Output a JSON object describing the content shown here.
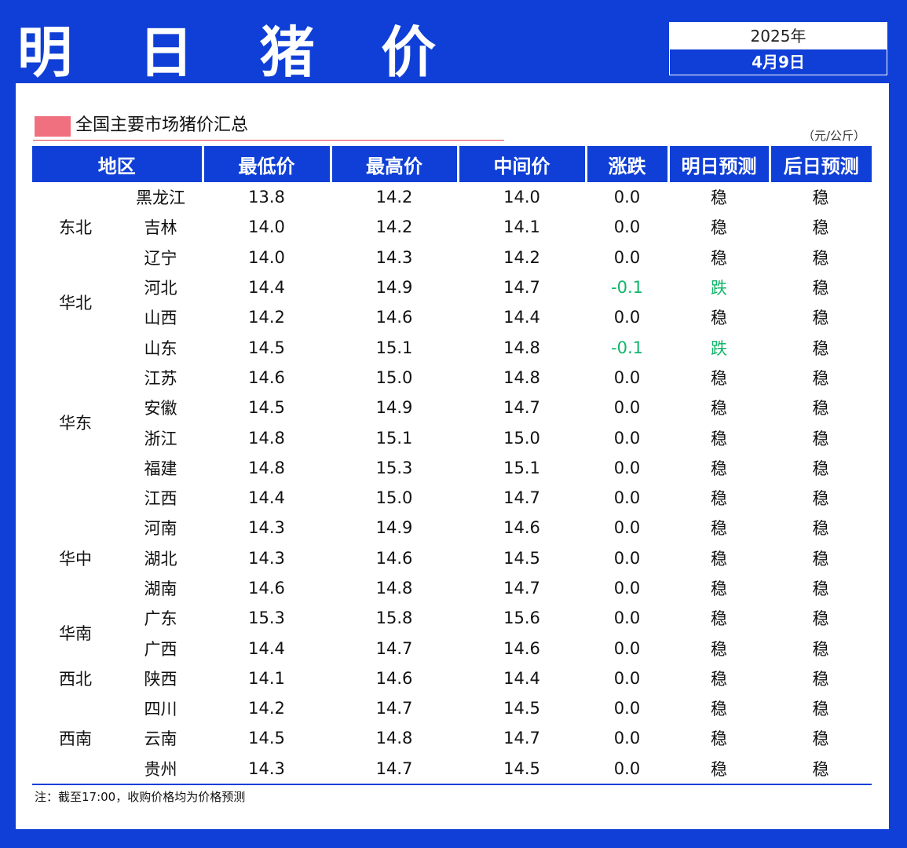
{
  "header": {
    "title": "明 日 猪 价",
    "year": "2025年",
    "date": "4月9日"
  },
  "section": {
    "title": "全国主要市场猪价汇总",
    "unit": "（元/公斤）"
  },
  "table": {
    "columns": [
      "地区",
      "最低价",
      "最高价",
      "中间价",
      "涨跌",
      "明日预测",
      "后日预测"
    ],
    "groups": [
      {
        "region": "东北",
        "rows": [
          {
            "province": "黑龙江",
            "min": "13.8",
            "max": "14.2",
            "mid": "14.0",
            "change": "0.0",
            "tomorrow": "稳",
            "after": "稳"
          },
          {
            "province": "吉林",
            "min": "14.0",
            "max": "14.2",
            "mid": "14.1",
            "change": "0.0",
            "tomorrow": "稳",
            "after": "稳"
          },
          {
            "province": "辽宁",
            "min": "14.0",
            "max": "14.3",
            "mid": "14.2",
            "change": "0.0",
            "tomorrow": "稳",
            "after": "稳"
          }
        ]
      },
      {
        "region": "华北",
        "rows": [
          {
            "province": "河北",
            "min": "14.4",
            "max": "14.9",
            "mid": "14.7",
            "change": "-0.1",
            "tomorrow": "跌",
            "after": "稳"
          },
          {
            "province": "山西",
            "min": "14.2",
            "max": "14.6",
            "mid": "14.4",
            "change": "0.0",
            "tomorrow": "稳",
            "after": "稳"
          }
        ]
      },
      {
        "region": "华东",
        "rows": [
          {
            "province": "山东",
            "min": "14.5",
            "max": "15.1",
            "mid": "14.8",
            "change": "-0.1",
            "tomorrow": "跌",
            "after": "稳"
          },
          {
            "province": "江苏",
            "min": "14.6",
            "max": "15.0",
            "mid": "14.8",
            "change": "0.0",
            "tomorrow": "稳",
            "after": "稳"
          },
          {
            "province": "安徽",
            "min": "14.5",
            "max": "14.9",
            "mid": "14.7",
            "change": "0.0",
            "tomorrow": "稳",
            "after": "稳"
          },
          {
            "province": "浙江",
            "min": "14.8",
            "max": "15.1",
            "mid": "15.0",
            "change": "0.0",
            "tomorrow": "稳",
            "after": "稳"
          },
          {
            "province": "福建",
            "min": "14.8",
            "max": "15.3",
            "mid": "15.1",
            "change": "0.0",
            "tomorrow": "稳",
            "after": "稳"
          },
          {
            "province": "江西",
            "min": "14.4",
            "max": "15.0",
            "mid": "14.7",
            "change": "0.0",
            "tomorrow": "稳",
            "after": "稳"
          }
        ]
      },
      {
        "region": "华中",
        "rows": [
          {
            "province": "河南",
            "min": "14.3",
            "max": "14.9",
            "mid": "14.6",
            "change": "0.0",
            "tomorrow": "稳",
            "after": "稳"
          },
          {
            "province": "湖北",
            "min": "14.3",
            "max": "14.6",
            "mid": "14.5",
            "change": "0.0",
            "tomorrow": "稳",
            "after": "稳"
          },
          {
            "province": "湖南",
            "min": "14.6",
            "max": "14.8",
            "mid": "14.7",
            "change": "0.0",
            "tomorrow": "稳",
            "after": "稳"
          }
        ]
      },
      {
        "region": "华南",
        "rows": [
          {
            "province": "广东",
            "min": "15.3",
            "max": "15.8",
            "mid": "15.6",
            "change": "0.0",
            "tomorrow": "稳",
            "after": "稳"
          },
          {
            "province": "广西",
            "min": "14.4",
            "max": "14.7",
            "mid": "14.6",
            "change": "0.0",
            "tomorrow": "稳",
            "after": "稳"
          }
        ]
      },
      {
        "region": "西北",
        "rows": [
          {
            "province": "陕西",
            "min": "14.1",
            "max": "14.6",
            "mid": "14.4",
            "change": "0.0",
            "tomorrow": "稳",
            "after": "稳"
          }
        ]
      },
      {
        "region": "西南",
        "rows": [
          {
            "province": "四川",
            "min": "14.2",
            "max": "14.7",
            "mid": "14.5",
            "change": "0.0",
            "tomorrow": "稳",
            "after": "稳"
          },
          {
            "province": "云南",
            "min": "14.5",
            "max": "14.8",
            "mid": "14.7",
            "change": "0.0",
            "tomorrow": "稳",
            "after": "稳"
          },
          {
            "province": "贵州",
            "min": "14.3",
            "max": "14.7",
            "mid": "14.5",
            "change": "0.0",
            "tomorrow": "稳",
            "after": "稳"
          }
        ]
      }
    ]
  },
  "note": "注：截至17:00，收购价格均为价格预测",
  "colors": {
    "brand_blue": "#0f3fd6",
    "down_green": "#12b66a",
    "accent_pink": "#f07080"
  }
}
